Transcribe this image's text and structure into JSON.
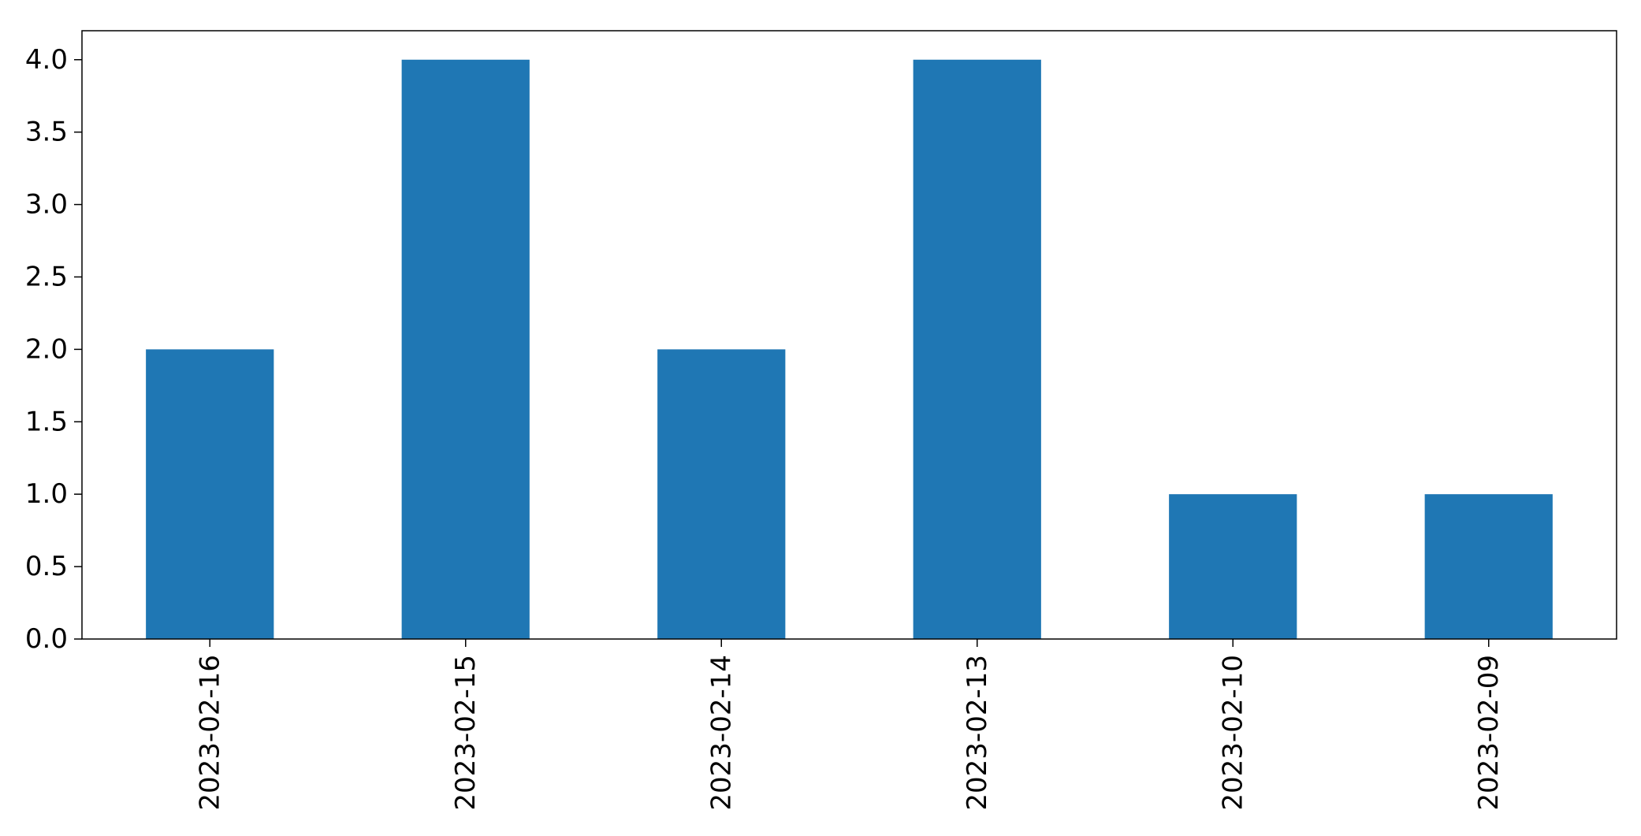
{
  "chart_data": {
    "type": "bar",
    "categories": [
      "2023-02-16",
      "2023-02-15",
      "2023-02-14",
      "2023-02-13",
      "2023-02-10",
      "2023-02-09"
    ],
    "values": [
      2,
      4,
      2,
      4,
      1,
      1
    ],
    "title": "",
    "xlabel": "",
    "ylabel": "",
    "ylim": [
      0,
      4.2
    ],
    "yticks": [
      0.0,
      0.5,
      1.0,
      1.5,
      2.0,
      2.5,
      3.0,
      3.5,
      4.0
    ],
    "ytick_labels": [
      "0.0",
      "0.5",
      "1.0",
      "1.5",
      "2.0",
      "2.5",
      "3.0",
      "3.5",
      "4.0"
    ],
    "grid": false,
    "bar_color": "#1f77b4",
    "x_tick_rotation": "vertical"
  }
}
